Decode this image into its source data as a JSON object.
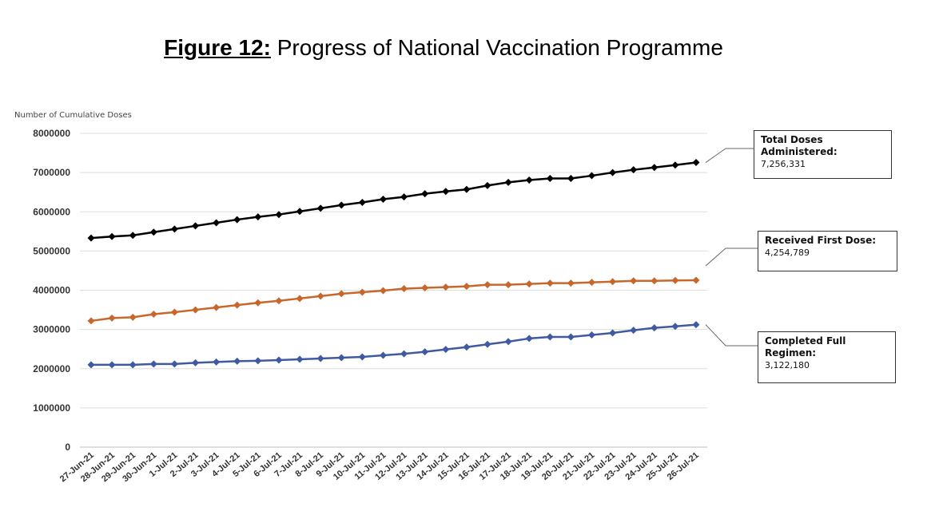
{
  "figure": {
    "label": "Figure 12:",
    "title": "Progress of National Vaccination Programme"
  },
  "callouts": {
    "total": {
      "label": "Total Doses Administered:",
      "value": "7,256,331"
    },
    "first": {
      "label": "Received First Dose:",
      "value": "4,254,789"
    },
    "full": {
      "label": "Completed Full Regimen:",
      "value": "3,122,180"
    }
  },
  "chart_data": {
    "type": "line",
    "title": "",
    "ylabel": "Number of Cumulative Doses",
    "xlabel": "",
    "ylim": [
      0,
      8000000
    ],
    "yticks": [
      "0",
      "1000000",
      "2000000",
      "3000000",
      "4000000",
      "5000000",
      "6000000",
      "7000000",
      "8000000"
    ],
    "grid": true,
    "categories": [
      "27-Jun-21",
      "28-Jun-21",
      "29-Jun-21",
      "30-Jun-21",
      "1-Jul-21",
      "2-Jul-21",
      "3-Jul-21",
      "4-Jul-21",
      "5-Jul-21",
      "6-Jul-21",
      "7-Jul-21",
      "8-Jul-21",
      "9-Jul-21",
      "10-Jul-21",
      "11-Jul-21",
      "12-Jul-21",
      "13-Jul-21",
      "14-Jul-21",
      "15-Jul-21",
      "16-Jul-21",
      "17-Jul-21",
      "18-Jul-21",
      "19-Jul-21",
      "20-Jul-21",
      "21-Jul-21",
      "22-Jul-21",
      "23-Jul-21",
      "24-Jul-21",
      "25-Jul-21",
      "26-Jul-21"
    ],
    "series": [
      {
        "color": "#000000",
        "values": [
          5330000,
          5370000,
          5400000,
          5480000,
          5560000,
          5640000,
          5720000,
          5800000,
          5870000,
          5930000,
          6010000,
          6090000,
          6170000,
          6240000,
          6320000,
          6380000,
          6460000,
          6520000,
          6570000,
          6670000,
          6750000,
          6810000,
          6850000,
          6850000,
          6920000,
          7000000,
          7070000,
          7130000,
          7190000,
          7256331
        ]
      },
      {
        "color": "#c8672b",
        "values": [
          3220000,
          3290000,
          3310000,
          3390000,
          3440000,
          3500000,
          3560000,
          3620000,
          3680000,
          3730000,
          3790000,
          3850000,
          3910000,
          3950000,
          3990000,
          4040000,
          4060000,
          4080000,
          4100000,
          4140000,
          4140000,
          4160000,
          4180000,
          4180000,
          4200000,
          4220000,
          4240000,
          4240000,
          4250000,
          4254789
        ]
      },
      {
        "color": "#3f5aa0",
        "values": [
          2100000,
          2100000,
          2100000,
          2120000,
          2120000,
          2150000,
          2170000,
          2190000,
          2200000,
          2220000,
          2240000,
          2260000,
          2280000,
          2300000,
          2340000,
          2380000,
          2430000,
          2490000,
          2550000,
          2620000,
          2690000,
          2770000,
          2810000,
          2810000,
          2860000,
          2910000,
          2980000,
          3040000,
          3080000,
          3122180
        ]
      }
    ]
  }
}
